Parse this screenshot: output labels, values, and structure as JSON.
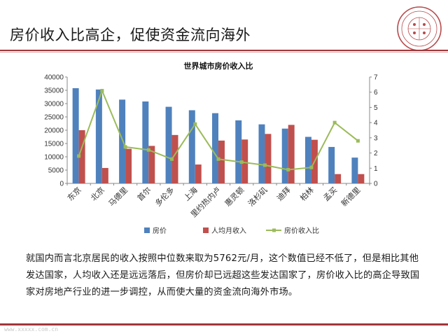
{
  "slide": {
    "title": "房价收入比高企，促使资金流向海外",
    "body_text": "就国内而言北京居民的收入按照中位数来取为5762元/月，这个数值已经不低了，但是相比其他发达国家，人均收入还是远远落后，但房价却已远超这些发达国家了，房价收入比的高企导致国家对房地产行业的进一步调控，从而使大量的资金流向海外市场。",
    "watermark": "www.xxxxx.com.cn"
  },
  "colors": {
    "accent": "#a0373a",
    "house_price": "#4f81bd",
    "income": "#c0504d",
    "ratio": "#9bbb59"
  },
  "chart_data": {
    "type": "bar",
    "title": "世界城市房价收入比",
    "categories": [
      "东京",
      "北京",
      "马德里",
      "首尔",
      "多伦多",
      "上海",
      "里约热内卢",
      "惠灵顿",
      "洛杉矶",
      "迪拜",
      "柏林",
      "孟买",
      "新德里"
    ],
    "series": [
      {
        "name": "房价",
        "type": "bar",
        "axis": "left",
        "values": [
          35800,
          35300,
          31500,
          30800,
          28800,
          27500,
          26400,
          23700,
          22200,
          20600,
          17500,
          13700,
          9700
        ]
      },
      {
        "name": "人均月收入",
        "type": "bar",
        "axis": "left",
        "values": [
          20000,
          5800,
          13000,
          14100,
          18200,
          7100,
          16100,
          16500,
          18600,
          22000,
          16400,
          3500,
          3500
        ]
      },
      {
        "name": "房价收入比",
        "type": "line",
        "axis": "right",
        "values": [
          1.8,
          6.1,
          2.4,
          2.2,
          1.6,
          3.9,
          1.6,
          1.4,
          1.2,
          0.9,
          1.05,
          4.0,
          2.8
        ]
      }
    ],
    "y_left": {
      "min": 0,
      "max": 40000,
      "step": 5000,
      "ticks": [
        "0",
        "5000",
        "10000",
        "15000",
        "20000",
        "25000",
        "30000",
        "35000",
        "40000"
      ]
    },
    "y_right": {
      "min": 0,
      "max": 7,
      "step": 1,
      "ticks": [
        "0",
        "1",
        "2",
        "3",
        "4",
        "5",
        "6",
        "7"
      ]
    },
    "grid": false,
    "legend_position": "bottom"
  }
}
